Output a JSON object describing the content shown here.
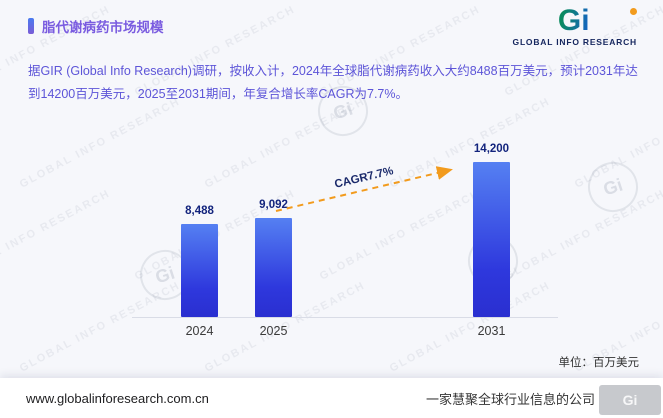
{
  "header": {
    "title": "脂代谢病药市场规模"
  },
  "logo": {
    "mark": "Gi",
    "name": "GLOBAL INFO RESEARCH"
  },
  "description": "据GIR (Global Info Research)调研，按收入计，2024年全球脂代谢病药收入大约8488百万美元，预计2031年达到14200百万美元，2025至2031期间，年复合增长率CAGR为7.7%。",
  "chart_data": {
    "type": "bar",
    "title": "脂代谢病药市场规模",
    "categories": [
      "2024",
      "2025",
      "2031"
    ],
    "values": [
      8488,
      9092,
      14200
    ],
    "value_labels": [
      "8,488",
      "9,092",
      "14,200"
    ],
    "annotation": "CAGR7.7%",
    "unit_label": "单位：百万美元",
    "ylim": [
      0,
      15000
    ],
    "grid": false,
    "legend_position": "none",
    "bar_color_top": "#5580f2",
    "bar_color_bottom": "#2a2fd0",
    "arrow_color": "#f29b1d",
    "value_label_color": "#13247d"
  },
  "footer": {
    "website": "www.globalinforesearch.com.cn",
    "slogan": "一家慧聚全球行业信息的公司"
  },
  "watermark": {
    "text": "GLOBAL INFO RESEARCH",
    "mark": "Gi"
  },
  "colors": {
    "title": "#7a5ce0",
    "description": "#5d55d8",
    "background": "#f6f7fb"
  }
}
